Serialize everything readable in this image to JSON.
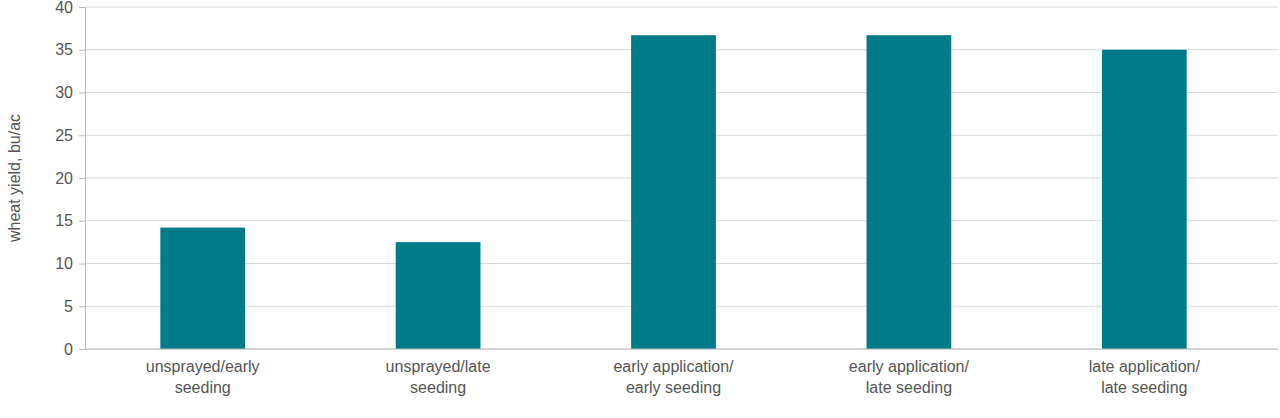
{
  "chart_data": {
    "type": "bar",
    "y_label": "wheat yield, bu/ac",
    "categories": [
      "unsprayed/early\nseeding",
      "unsprayed/late\nseeding",
      "early application/\nearly seeding",
      "early application/\nlate seeding",
      "late application/\nlate seeding"
    ],
    "values": [
      14.2,
      12.5,
      36.7,
      36.7,
      35.0
    ],
    "color": "#007b8a",
    "ylim": [
      0,
      40
    ],
    "yticks": [
      0,
      5,
      10,
      15,
      20,
      25,
      30,
      35,
      40
    ],
    "grid": true
  }
}
